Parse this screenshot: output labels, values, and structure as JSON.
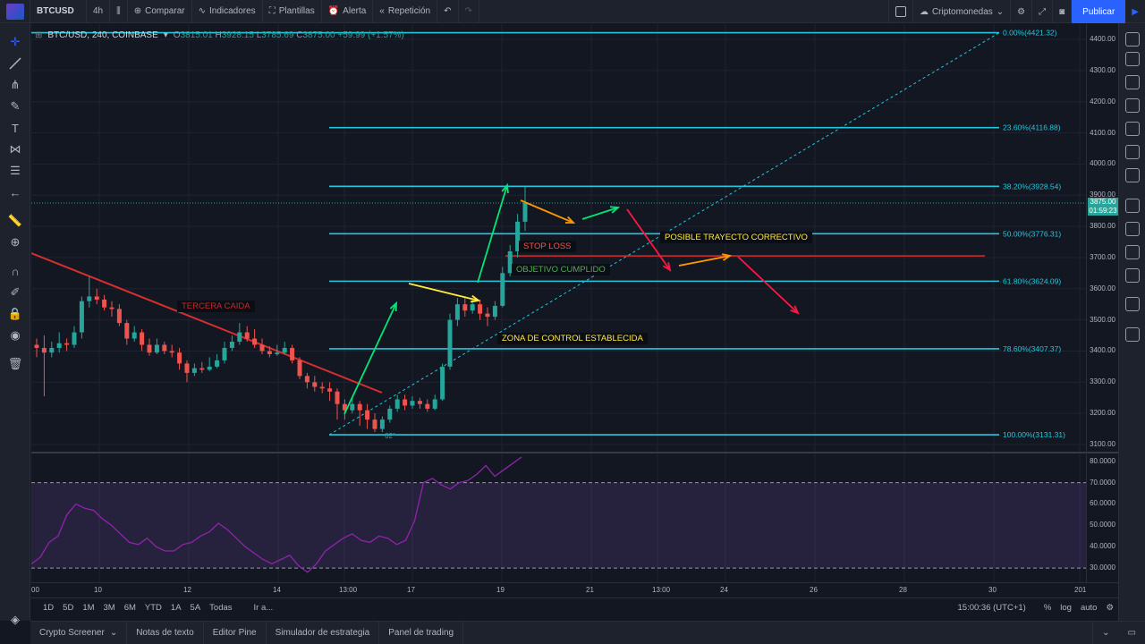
{
  "topbar": {
    "symbol": "BTCUSD",
    "interval": "4h",
    "compare": "Comparar",
    "indicators": "Indicadores",
    "templates": "Plantillas",
    "alert": "Alerta",
    "replay": "Repetición",
    "market": "Criptomonedas",
    "publish": "Publicar"
  },
  "legend": {
    "symbol": "BTC/USD, 240, COINBASE",
    "o_label": "O",
    "o": "3815.01",
    "h_label": "H",
    "h": "3928.15",
    "l_label": "L",
    "l": "3785.69",
    "c_label": "C",
    "c": "3875.00",
    "change": "+59.99 (+1.57%)"
  },
  "price_axis": {
    "ticks": [
      "4400.00",
      "4300.00",
      "4200.00",
      "4100.00",
      "4000.00",
      "3900.00",
      "3800.00",
      "3700.00",
      "3600.00",
      "3500.00",
      "3400.00",
      "3300.00",
      "3200.00",
      "3100.00"
    ],
    "current_price": "3875.00",
    "countdown": "01:59:23"
  },
  "rsi_axis": {
    "ticks": [
      "80.0000",
      "70.0000",
      "60.0000",
      "50.0000",
      "40.0000",
      "30.0000"
    ]
  },
  "time_axis": {
    "ticks": [
      "00",
      "10",
      "12",
      "14",
      "13:00",
      "17",
      "19",
      "21",
      "13:00",
      "24",
      "26",
      "28",
      "30",
      "201"
    ]
  },
  "fib_levels": [
    {
      "label": "0.00%(4421.32)",
      "price": 4421.32
    },
    {
      "label": "23.60%(4116.88)",
      "price": 4116.88
    },
    {
      "label": "38.20%(3928.54)",
      "price": 3928.54
    },
    {
      "label": "50.00%(3776.31)",
      "price": 3776.31
    },
    {
      "label": "61.80%(3624.09)",
      "price": 3624.09
    },
    {
      "label": "78.60%(3407.37)",
      "price": 3407.37
    },
    {
      "label": "100.00%(3131.31)",
      "price": 3131.31
    }
  ],
  "annotations": {
    "tercera_caida": "TERCERA CAIDA",
    "stop_loss": "STOP LOSS",
    "objetivo": "OBJETIVO CUMPLIDO",
    "zona": "ZONA DE CONTROL ESTABLECIDA",
    "posible": "POSIBLE TRAYECTO CORRECTIVO",
    "angle": "62°"
  },
  "range_bar": {
    "ranges": [
      "1D",
      "5D",
      "1M",
      "3M",
      "6M",
      "YTD",
      "1A",
      "5A",
      "Todas"
    ],
    "goto": "Ir a...",
    "clock": "15:00:36 (UTC+1)",
    "percent": "%",
    "log": "log",
    "auto": "auto"
  },
  "bottom_tabs": [
    "Crypto Screener",
    "Notas de texto",
    "Editor Pine",
    "Simulador de estrategia",
    "Panel de trading"
  ],
  "colors": {
    "up": "#26a69a",
    "down": "#ef5350",
    "fib": "#26c6da",
    "trend": "#d32f2f",
    "accent": "#2962ff"
  },
  "chart_data": {
    "type": "candlestick",
    "ylim": [
      3080,
      4480
    ],
    "candles": [
      [
        3420,
        3410,
        3440,
        3380
      ],
      [
        3410,
        3395,
        3450,
        3255
      ],
      [
        3395,
        3410,
        3430,
        3380
      ],
      [
        3410,
        3425,
        3460,
        3395
      ],
      [
        3425,
        3420,
        3440,
        3400
      ],
      [
        3420,
        3460,
        3480,
        3410
      ],
      [
        3460,
        3560,
        3575,
        3440
      ],
      [
        3560,
        3575,
        3640,
        3540
      ],
      [
        3575,
        3565,
        3600,
        3550
      ],
      [
        3565,
        3540,
        3580,
        3530
      ],
      [
        3540,
        3535,
        3560,
        3510
      ],
      [
        3535,
        3490,
        3550,
        3480
      ],
      [
        3490,
        3440,
        3500,
        3420
      ],
      [
        3440,
        3460,
        3480,
        3430
      ],
      [
        3460,
        3420,
        3470,
        3400
      ],
      [
        3420,
        3395,
        3440,
        3385
      ],
      [
        3395,
        3420,
        3440,
        3390
      ],
      [
        3420,
        3400,
        3430,
        3390
      ],
      [
        3400,
        3395,
        3420,
        3380
      ],
      [
        3395,
        3360,
        3410,
        3340
      ],
      [
        3360,
        3330,
        3370,
        3300
      ],
      [
        3330,
        3345,
        3360,
        3320
      ],
      [
        3345,
        3340,
        3365,
        3330
      ],
      [
        3340,
        3350,
        3380,
        3335
      ],
      [
        3350,
        3370,
        3390,
        3345
      ],
      [
        3370,
        3410,
        3430,
        3360
      ],
      [
        3410,
        3430,
        3450,
        3400
      ],
      [
        3430,
        3460,
        3490,
        3420
      ],
      [
        3460,
        3440,
        3480,
        3430
      ],
      [
        3440,
        3420,
        3470,
        3410
      ],
      [
        3420,
        3400,
        3440,
        3390
      ],
      [
        3400,
        3390,
        3415,
        3380
      ],
      [
        3390,
        3395,
        3420,
        3385
      ],
      [
        3395,
        3410,
        3430,
        3390
      ],
      [
        3410,
        3370,
        3420,
        3360
      ],
      [
        3370,
        3320,
        3380,
        3310
      ],
      [
        3320,
        3300,
        3330,
        3280
      ],
      [
        3300,
        3285,
        3320,
        3270
      ],
      [
        3285,
        3280,
        3300,
        3265
      ],
      [
        3280,
        3270,
        3300,
        3240
      ],
      [
        3270,
        3230,
        3280,
        3180
      ],
      [
        3230,
        3210,
        3245,
        3180
      ],
      [
        3210,
        3230,
        3250,
        3200
      ],
      [
        3230,
        3210,
        3240,
        3160
      ],
      [
        3210,
        3180,
        3230,
        3150
      ],
      [
        3180,
        3150,
        3200,
        3140
      ],
      [
        3150,
        3180,
        3190,
        3140
      ],
      [
        3180,
        3215,
        3225,
        3170
      ],
      [
        3215,
        3245,
        3260,
        3205
      ],
      [
        3245,
        3225,
        3260,
        3210
      ],
      [
        3225,
        3240,
        3255,
        3215
      ],
      [
        3240,
        3230,
        3250,
        3215
      ],
      [
        3230,
        3215,
        3245,
        3205
      ],
      [
        3215,
        3245,
        3260,
        3210
      ],
      [
        3245,
        3350,
        3360,
        3240
      ],
      [
        3350,
        3500,
        3520,
        3340
      ],
      [
        3500,
        3550,
        3570,
        3480
      ],
      [
        3550,
        3530,
        3575,
        3510
      ],
      [
        3530,
        3550,
        3570,
        3520
      ],
      [
        3550,
        3520,
        3565,
        3500
      ],
      [
        3520,
        3510,
        3540,
        3480
      ],
      [
        3510,
        3545,
        3560,
        3500
      ],
      [
        3545,
        3650,
        3670,
        3540
      ],
      [
        3650,
        3720,
        3740,
        3640
      ],
      [
        3720,
        3815,
        3840,
        3700
      ],
      [
        3815,
        3875,
        3928,
        3785
      ]
    ],
    "rsi": [
      32,
      35,
      42,
      45,
      55,
      60,
      58,
      57,
      53,
      50,
      46,
      42,
      41,
      44,
      40,
      38,
      38,
      41,
      42,
      45,
      47,
      51,
      48,
      44,
      40,
      37,
      34,
      32,
      34,
      36,
      31,
      28,
      32,
      38,
      41,
      44,
      46,
      43,
      42,
      45,
      44,
      41,
      43,
      52,
      70,
      72,
      69,
      67,
      70,
      71,
      74,
      78,
      73,
      76,
      79,
      82
    ]
  }
}
